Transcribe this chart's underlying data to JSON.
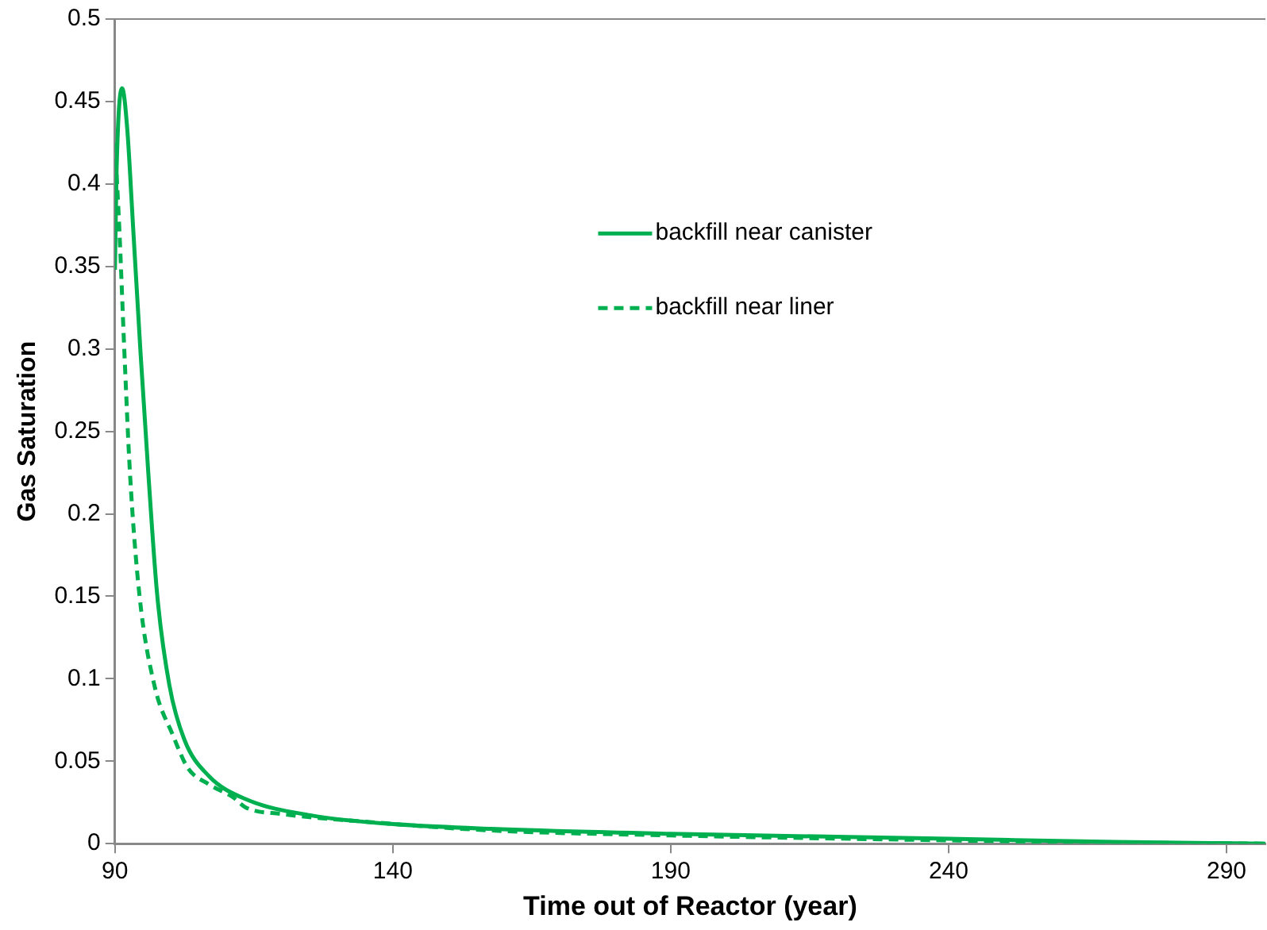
{
  "chart_data": {
    "type": "line",
    "xlabel": "Time out of Reactor (year)",
    "ylabel": "Gas Saturation",
    "xlim": [
      90,
      297
    ],
    "xticks": [
      90,
      140,
      190,
      240,
      290
    ],
    "ylim": [
      0,
      0.5
    ],
    "yticks": [
      0,
      0.05,
      0.1,
      0.15,
      0.2,
      0.25,
      0.3,
      0.35,
      0.4,
      0.45,
      0.5
    ],
    "grid": false,
    "legend": "top right",
    "marker": "none",
    "series": [
      {
        "name": "backfill near canister",
        "color": "#00b050",
        "line_style": "solid",
        "x": [
          90,
          90.3,
          91.3,
          92.2,
          93.3,
          94.6,
          96,
          97.6,
          99.8,
          102.5,
          106.9,
          113.5,
          125.5,
          139.6,
          157.7,
          190,
          240,
          270,
          297
        ],
        "values": [
          0.348,
          0.409,
          0.458,
          0.434,
          0.372,
          0.298,
          0.225,
          0.151,
          0.096,
          0.063,
          0.041,
          0.027,
          0.017,
          0.012,
          0.009,
          0.006,
          0.003,
          0.001,
          0
        ]
      },
      {
        "name": "backfill near liner",
        "color": "#00b050",
        "line_style": "dashed",
        "x": [
          90,
          90.8,
          91.7,
          92.7,
          94.4,
          97.1,
          100.4,
          103.1,
          106.9,
          111.3,
          113.5,
          120,
          136.3,
          157.7,
          190,
          240,
          260,
          297
        ],
        "values": [
          0.425,
          0.372,
          0.298,
          0.225,
          0.151,
          0.096,
          0.066,
          0.046,
          0.036,
          0.028,
          0.022,
          0.018,
          0.013,
          0.008,
          0.005,
          0.002,
          0.001,
          0
        ]
      }
    ]
  }
}
